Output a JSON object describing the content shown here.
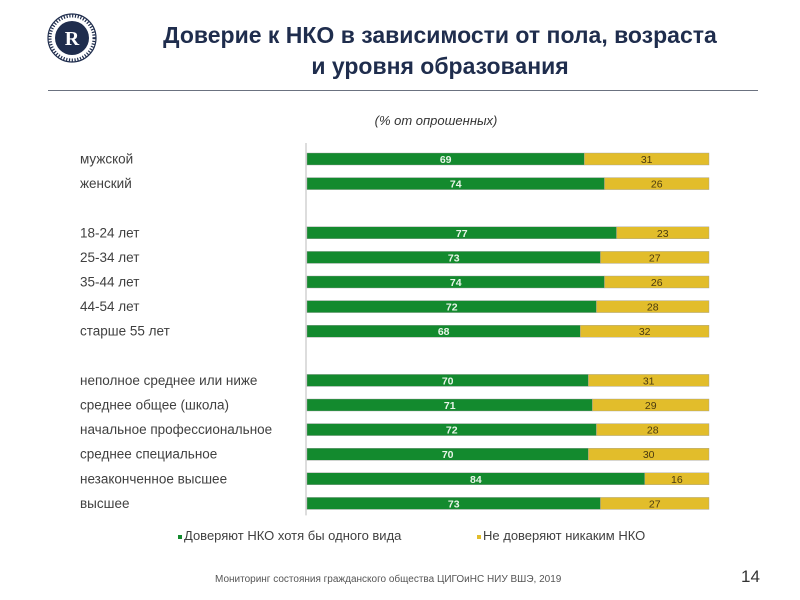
{
  "header": {
    "logo": "hse-university-logo",
    "title_line1": "Доверие к НКО в зависимости от пола, возраста",
    "title_line2": "и уровня образования",
    "subtitle": "(% от опрошенных)"
  },
  "colors": {
    "trust": "#138a2e",
    "no_trust": "#e2bd2b",
    "title": "#1f2d4d"
  },
  "chart_data": {
    "type": "bar",
    "orientation": "horizontal",
    "stacked": true,
    "title": "Доверие к НКО в зависимости от пола, возраста и уровня образования",
    "subtitle": "(% от опрошенных)",
    "xlabel": "",
    "ylabel": "",
    "xlim": [
      0,
      100
    ],
    "grid": false,
    "legend_position": "bottom",
    "groups": [
      {
        "name": "gender",
        "categories": [
          "мужской",
          "женский"
        ]
      },
      {
        "name": "age",
        "categories": [
          "18-24 лет",
          "25-34 лет",
          "35-44 лет",
          "44-54 лет",
          "старше 55 лет"
        ]
      },
      {
        "name": "education",
        "categories": [
          "неполное среднее или ниже",
          "среднее общее (школа)",
          "начальное профессиональное",
          "среднее специальное",
          "незаконченное высшее",
          "высшее"
        ]
      }
    ],
    "categories": [
      "мужской",
      "женский",
      "18-24 лет",
      "25-34 лет",
      "35-44 лет",
      "44-54 лет",
      "старше 55 лет",
      "неполное среднее или ниже",
      "среднее общее (школа)",
      "начальное профессиональное",
      "среднее специальное",
      "незаконченное высшее",
      "высшее"
    ],
    "series": [
      {
        "name": "Доверяют НКО хотя бы одного вида",
        "color": "#138a2e",
        "values": [
          69,
          74,
          77,
          73,
          74,
          72,
          68,
          70,
          71,
          72,
          70,
          84,
          73
        ]
      },
      {
        "name": "Не доверяют никаким НКО",
        "color": "#e2bd2b",
        "values": [
          31,
          26,
          23,
          27,
          26,
          28,
          32,
          31,
          29,
          28,
          30,
          16,
          27
        ]
      }
    ]
  },
  "footer": {
    "source": "Мониторинг состояния гражданского общества ЦИГОиНС НИУ ВШЭ, 2019",
    "page_number": "14"
  }
}
